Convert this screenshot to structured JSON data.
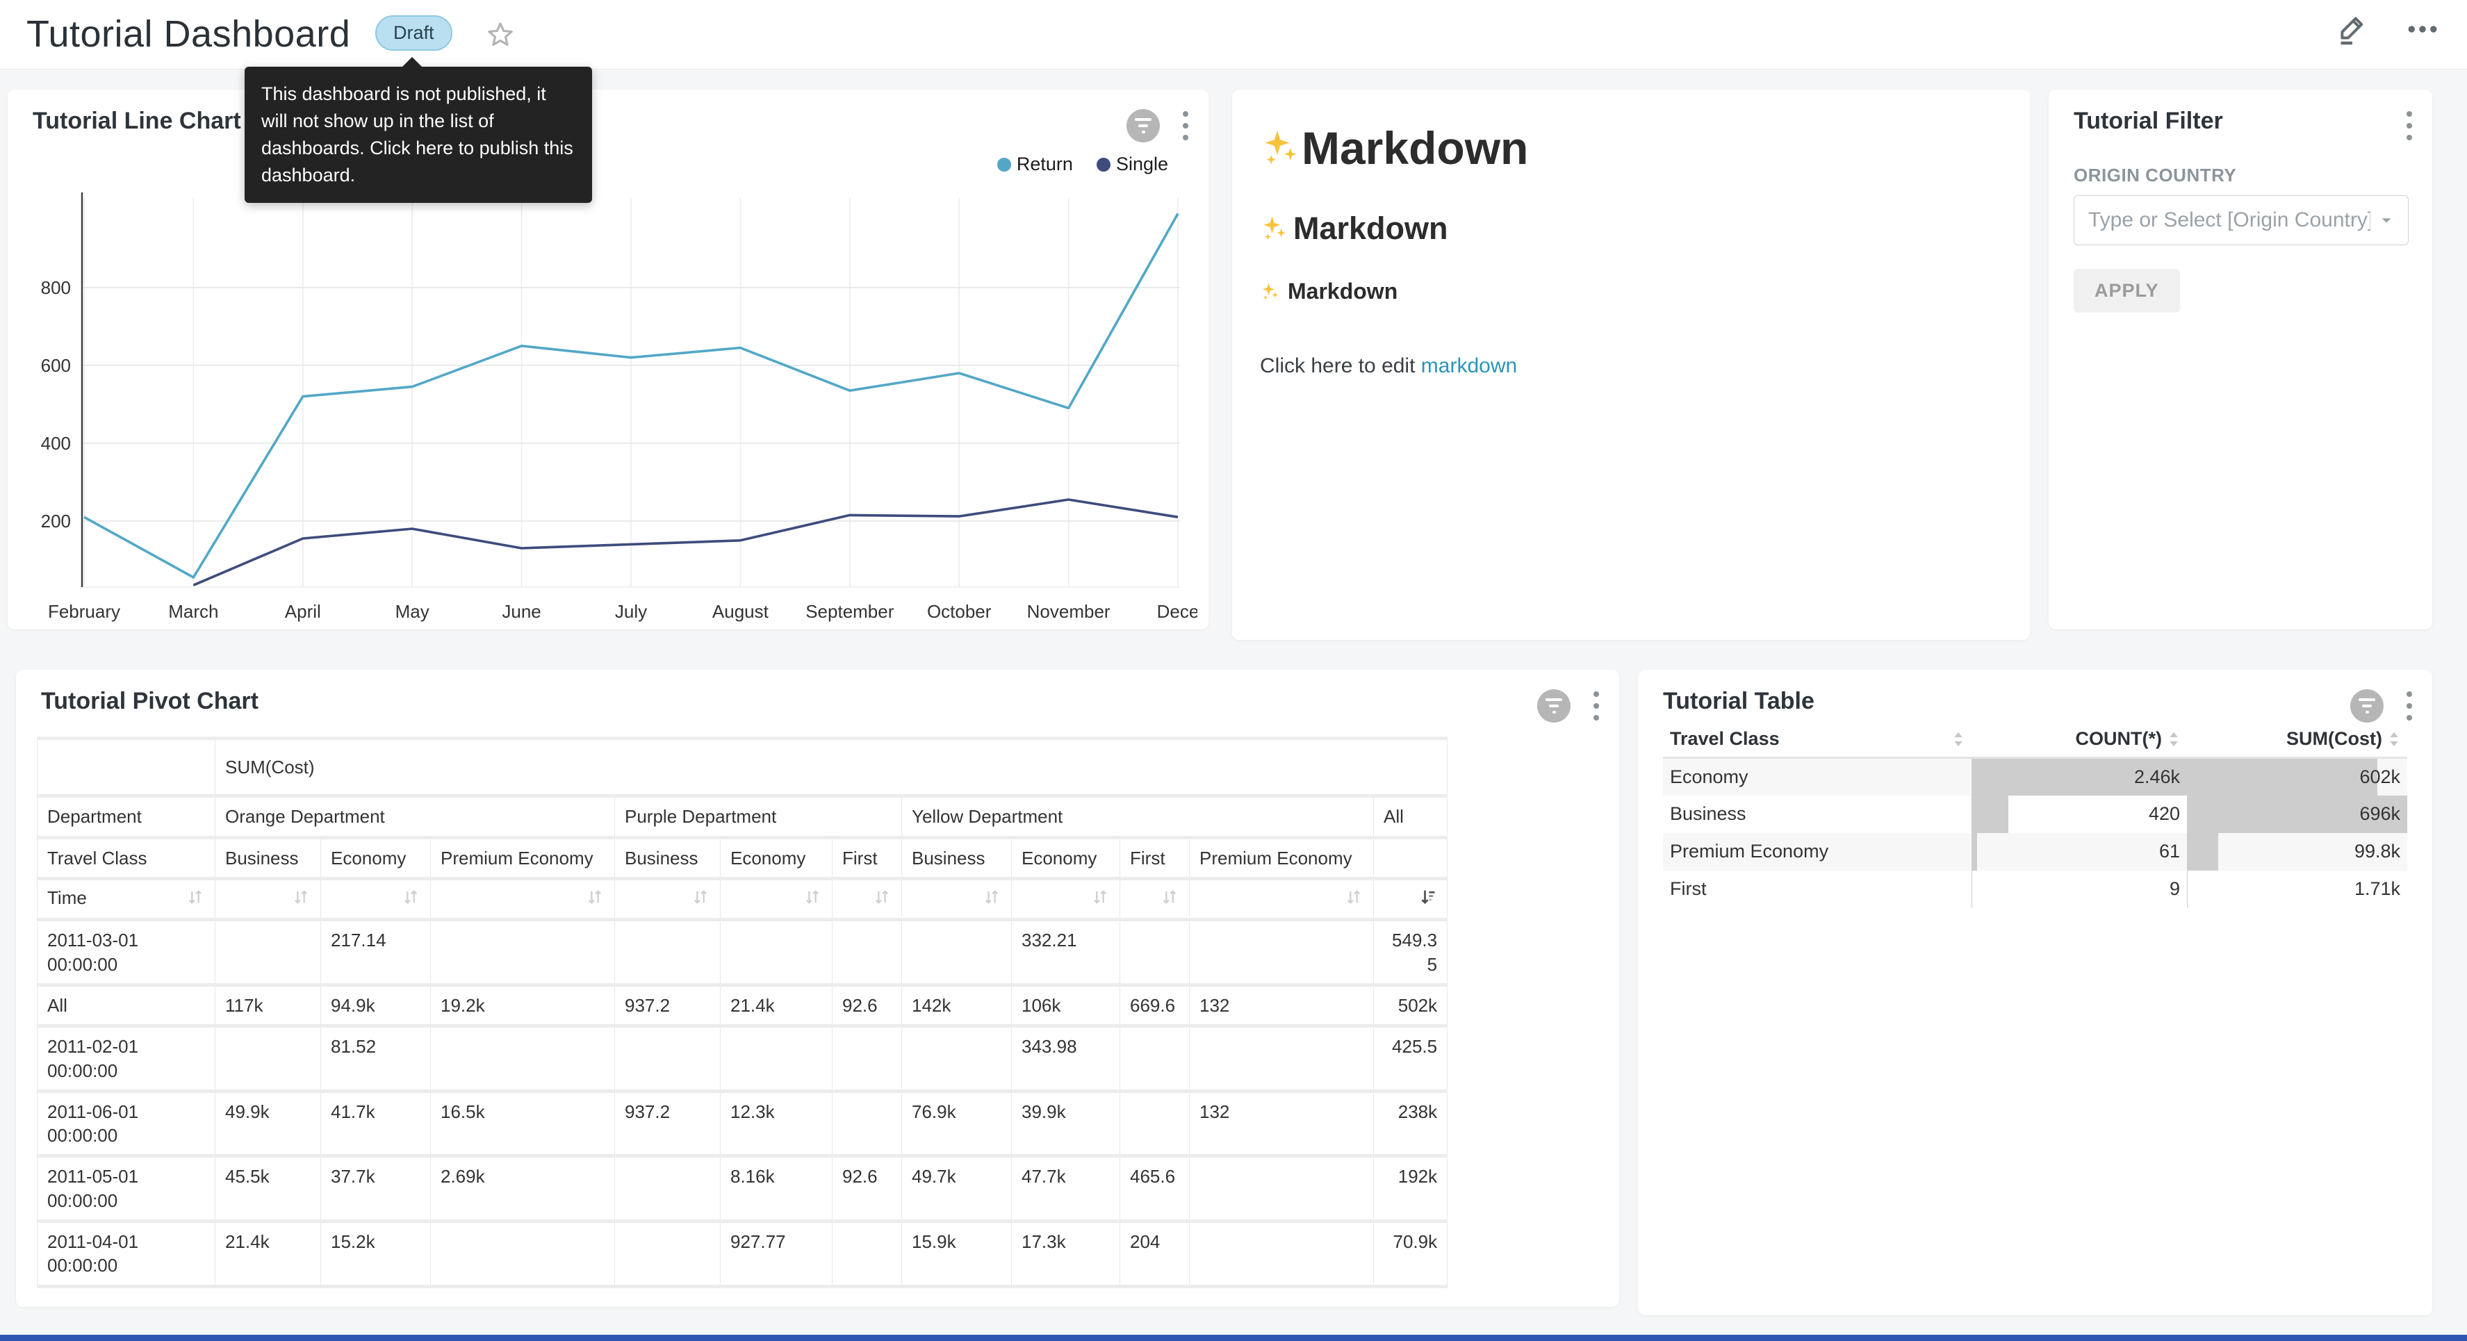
{
  "header": {
    "title": "Tutorial Dashboard",
    "badge": "Draft",
    "tooltip": "This dashboard is not published, it will not show up in the list of dashboards. Click here to publish this dashboard."
  },
  "colors": {
    "return_series": "#52a7c7",
    "single_series": "#3e4c7d",
    "link": "#2b94b8",
    "draft_badge_bg": "#b9dff0",
    "table_bar": "#cdcdcd",
    "bottom_bar": "#2f55b3"
  },
  "icons": {
    "header": [
      "edit-pencil-icon",
      "ellipsis-icon",
      "star-icon"
    ],
    "card": [
      "filter-badge-icon",
      "kebab-menu-icon"
    ],
    "markdown": "sparkles-icon"
  },
  "line_chart": {
    "title": "Tutorial Line Chart",
    "legend": [
      {
        "label": "Return",
        "color": "#52a7c7"
      },
      {
        "label": "Single",
        "color": "#3e4c7d"
      }
    ]
  },
  "chart_data": {
    "type": "line",
    "title": "Tutorial Line Chart",
    "x": [
      "February",
      "March",
      "April",
      "May",
      "June",
      "July",
      "August",
      "September",
      "October",
      "November",
      "December"
    ],
    "x_tick_labels": [
      "February",
      "March",
      "April",
      "May",
      "June",
      "July",
      "August",
      "September",
      "October",
      "November",
      "Dece"
    ],
    "series": [
      {
        "name": "Return",
        "color": "#52a7c7",
        "values": [
          210,
          55,
          520,
          545,
          650,
          620,
          645,
          535,
          580,
          490,
          990
        ]
      },
      {
        "name": "Single",
        "color": "#3e4c7d",
        "values": [
          null,
          35,
          155,
          180,
          130,
          140,
          150,
          215,
          212,
          255,
          210
        ]
      }
    ],
    "yticks": [
      200,
      400,
      600,
      800
    ],
    "ylim": [
      30,
      1030
    ],
    "grid": true,
    "legend_position": "top-right"
  },
  "markdown": {
    "sparkle_emoji": "✨",
    "h1_text": "Markdown",
    "h2_text": "Markdown",
    "h3_text": "Markdown",
    "para_prefix": "Click here to edit ",
    "link_text": "markdown"
  },
  "filter_card": {
    "title": "Tutorial Filter",
    "field_label": "ORIGIN COUNTRY",
    "placeholder": "Type or Select [Origin Country]",
    "apply_label": "APPLY"
  },
  "pivot": {
    "title": "Tutorial Pivot Chart",
    "metric_header": "SUM(Cost)",
    "dept_row": [
      {
        "label": "Department",
        "span": 1
      },
      {
        "label": "Orange Department",
        "span": 3
      },
      {
        "label": "Purple Department",
        "span": 3
      },
      {
        "label": "Yellow Department",
        "span": 4
      },
      {
        "label": "All",
        "span": 1
      }
    ],
    "class_row": [
      "Travel Class",
      "Business",
      "Economy",
      "Premium Economy",
      "Business",
      "Economy",
      "First",
      "Business",
      "Economy",
      "First",
      "Premium Economy",
      ""
    ],
    "time_label": "Time",
    "rows": [
      {
        "label": "2011-03-01 00:00:00",
        "values": [
          "",
          "217.14",
          "",
          "",
          "",
          "",
          "",
          "332.21",
          "",
          "",
          "549.35"
        ]
      },
      {
        "label": "All",
        "values": [
          "117k",
          "94.9k",
          "19.2k",
          "937.2",
          "21.4k",
          "92.6",
          "142k",
          "106k",
          "669.6",
          "132",
          "502k"
        ]
      },
      {
        "label": "2011-02-01 00:00:00",
        "values": [
          "",
          "81.52",
          "",
          "",
          "",
          "",
          "",
          "343.98",
          "",
          "",
          "425.5"
        ]
      },
      {
        "label": "2011-06-01 00:00:00",
        "values": [
          "49.9k",
          "41.7k",
          "16.5k",
          "937.2",
          "12.3k",
          "",
          "76.9k",
          "39.9k",
          "",
          "132",
          "238k"
        ]
      },
      {
        "label": "2011-05-01 00:00:00",
        "values": [
          "45.5k",
          "37.7k",
          "2.69k",
          "",
          "8.16k",
          "92.6",
          "49.7k",
          "47.7k",
          "465.6",
          "",
          "192k"
        ]
      },
      {
        "label": "2011-04-01 00:00:00",
        "values": [
          "21.4k",
          "15.2k",
          "",
          "",
          "927.77",
          "",
          "15.9k",
          "17.3k",
          "204",
          "",
          "70.9k"
        ]
      }
    ]
  },
  "table": {
    "title": "Tutorial Table",
    "columns": [
      "Travel Class",
      "COUNT(*)",
      "SUM(Cost)"
    ],
    "rows": [
      {
        "travel_class": "Economy",
        "count": "2.46k",
        "count_pct": 100,
        "sum": "602k",
        "sum_pct": 86.5
      },
      {
        "travel_class": "Business",
        "count": "420",
        "count_pct": 17,
        "sum": "696k",
        "sum_pct": 100
      },
      {
        "travel_class": "Premium Economy",
        "count": "61",
        "count_pct": 2.5,
        "sum": "99.8k",
        "sum_pct": 14.3
      },
      {
        "travel_class": "First",
        "count": "9",
        "count_pct": 0.4,
        "sum": "1.71k",
        "sum_pct": 0.25
      }
    ]
  }
}
